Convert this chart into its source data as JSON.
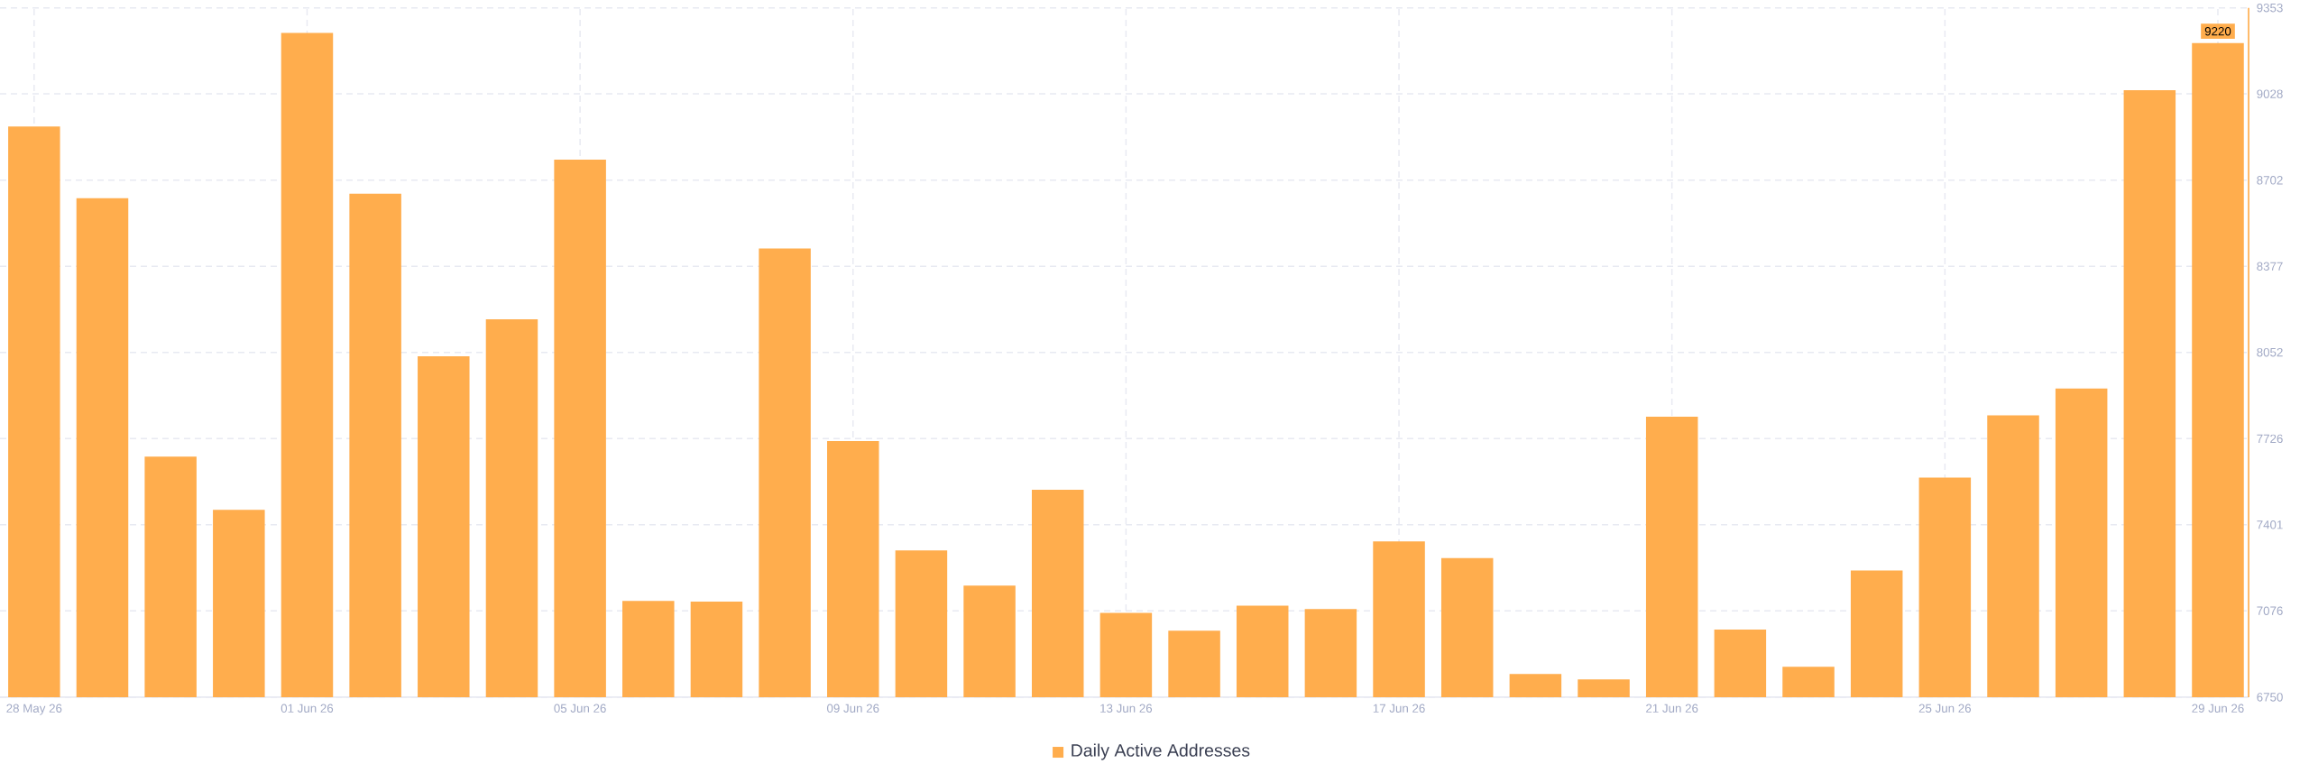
{
  "chart_data": {
    "type": "bar",
    "categories": [
      "28 May 26",
      null,
      null,
      null,
      "01 Jun 26",
      null,
      null,
      null,
      "05 Jun 26",
      null,
      null,
      null,
      "09 Jun 26",
      null,
      null,
      null,
      "13 Jun 26",
      null,
      null,
      null,
      "17 Jun 26",
      null,
      null,
      null,
      "21 Jun 26",
      null,
      null,
      null,
      "25 Jun 26",
      null,
      null,
      null,
      "29 Jun 26"
    ],
    "series": [
      {
        "name": "Daily Active Addresses",
        "color": "#ffad4d",
        "values": [
          8905,
          8634,
          7658,
          7457,
          9258,
          8651,
          8037,
          8177,
          8780,
          7113,
          7111,
          8444,
          7717,
          7304,
          7171,
          7533,
          7068,
          7001,
          7095,
          7083,
          7338,
          7275,
          6837,
          6817,
          7809,
          7005,
          6865,
          7228,
          7579,
          7814,
          7915,
          9042,
          9220
        ],
        "value_labels": [
          null,
          null,
          null,
          null,
          null,
          null,
          null,
          null,
          null,
          null,
          null,
          null,
          null,
          null,
          null,
          null,
          null,
          null,
          null,
          null,
          null,
          null,
          null,
          null,
          null,
          null,
          null,
          null,
          null,
          null,
          null,
          null,
          "9220"
        ]
      }
    ],
    "ylim": [
      6750,
      9353
    ],
    "yticks": [
      6750,
      7076,
      7401,
      7726,
      8052,
      8377,
      8702,
      9028,
      9353
    ],
    "grid": true,
    "legend": "bottom"
  }
}
